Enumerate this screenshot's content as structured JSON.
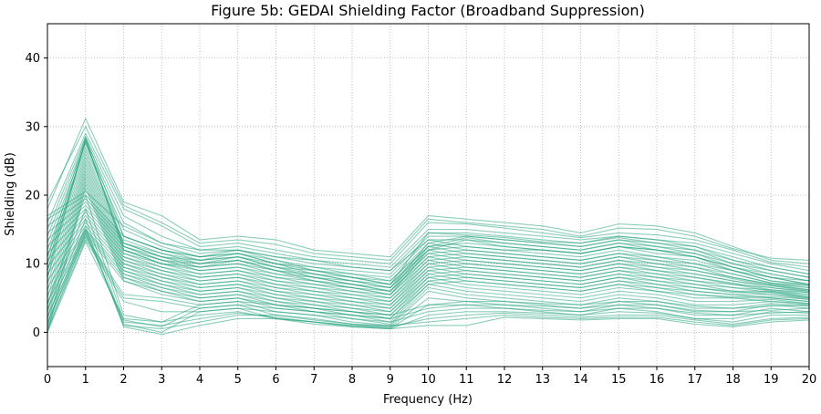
{
  "chart_data": {
    "type": "line",
    "title": "Figure 5b: GEDAI Shielding Factor (Broadband Suppression)",
    "xlabel": "Frequency (Hz)",
    "ylabel": "Shielding (dB)",
    "xlim": [
      0,
      20
    ],
    "ylim": [
      -5,
      45
    ],
    "xticks": [
      0,
      1,
      2,
      3,
      4,
      5,
      6,
      7,
      8,
      9,
      10,
      11,
      12,
      13,
      14,
      15,
      16,
      17,
      18,
      19,
      20
    ],
    "yticks": [
      0,
      10,
      20,
      30,
      40
    ],
    "x": [
      0,
      1,
      2,
      3,
      4,
      5,
      6,
      7,
      8,
      9,
      10,
      11,
      12,
      13,
      14,
      15,
      16,
      17,
      18,
      19,
      20
    ],
    "grid": true,
    "grid_style": "dotted",
    "line_color": "#1a9e77",
    "series": [
      {
        "values": [
          18.0,
          31.2,
          19.0,
          17.0,
          13.5,
          14.0,
          13.5,
          12.0,
          11.5,
          11.0,
          17.0,
          16.5,
          16.0,
          15.5,
          14.5,
          15.8,
          15.5,
          14.5,
          12.5,
          10.5,
          10.0
        ]
      },
      {
        "values": [
          16.0,
          29.0,
          18.0,
          15.5,
          12.5,
          13.0,
          12.0,
          11.0,
          10.5,
          10.0,
          16.0,
          15.8,
          15.2,
          14.5,
          13.8,
          14.5,
          14.2,
          13.5,
          12.0,
          10.2,
          9.5
        ]
      },
      {
        "values": [
          15.0,
          28.5,
          17.0,
          14.0,
          12.0,
          12.5,
          11.5,
          10.5,
          10.0,
          9.5,
          15.0,
          15.0,
          14.5,
          14.0,
          13.5,
          14.0,
          13.5,
          13.0,
          11.5,
          10.0,
          9.0
        ]
      },
      {
        "values": [
          14.0,
          28.0,
          16.0,
          13.0,
          11.5,
          12.0,
          11.0,
          10.0,
          9.5,
          9.0,
          14.5,
          14.5,
          14.0,
          13.5,
          13.0,
          13.8,
          13.0,
          12.5,
          11.0,
          9.5,
          8.5
        ]
      },
      {
        "values": [
          13.0,
          27.5,
          15.0,
          12.5,
          11.0,
          11.5,
          10.5,
          9.5,
          9.0,
          8.5,
          14.0,
          14.0,
          13.5,
          13.0,
          12.5,
          13.5,
          12.5,
          12.0,
          10.5,
          9.0,
          8.0
        ]
      },
      {
        "values": [
          12.0,
          27.0,
          14.0,
          12.0,
          10.5,
          11.0,
          10.0,
          9.0,
          8.5,
          8.0,
          13.5,
          13.5,
          13.0,
          12.5,
          12.0,
          13.0,
          12.0,
          11.5,
          10.0,
          8.5,
          7.5
        ]
      },
      {
        "values": [
          11.0,
          26.5,
          13.0,
          11.5,
          10.0,
          10.5,
          9.5,
          8.5,
          8.0,
          7.5,
          12.5,
          13.0,
          12.5,
          12.0,
          11.5,
          12.5,
          11.5,
          11.0,
          9.5,
          8.0,
          7.0
        ]
      },
      {
        "values": [
          10.0,
          26.0,
          12.5,
          11.0,
          9.5,
          10.0,
          9.0,
          8.0,
          7.5,
          7.0,
          12.0,
          12.5,
          12.0,
          11.5,
          11.0,
          12.0,
          11.0,
          10.5,
          9.0,
          7.5,
          6.8
        ]
      },
      {
        "values": [
          9.0,
          25.5,
          12.0,
          10.5,
          9.0,
          9.5,
          8.5,
          7.5,
          7.0,
          6.5,
          11.5,
          12.0,
          11.5,
          11.0,
          10.5,
          11.5,
          10.5,
          10.0,
          8.5,
          7.2,
          6.5
        ]
      },
      {
        "values": [
          8.0,
          25.0,
          11.5,
          10.0,
          8.5,
          9.0,
          8.0,
          7.0,
          6.5,
          6.0,
          11.0,
          11.5,
          11.0,
          10.5,
          10.0,
          11.0,
          10.0,
          9.5,
          8.0,
          7.0,
          6.2
        ]
      },
      {
        "values": [
          7.0,
          24.5,
          11.0,
          9.5,
          8.0,
          8.5,
          7.5,
          6.5,
          6.0,
          5.5,
          10.5,
          11.0,
          10.5,
          10.0,
          9.5,
          10.5,
          9.5,
          9.0,
          7.8,
          6.8,
          6.0
        ]
      },
      {
        "values": [
          6.0,
          24.0,
          10.5,
          9.0,
          7.5,
          8.0,
          7.0,
          6.0,
          5.5,
          5.0,
          10.0,
          10.5,
          10.0,
          9.5,
          9.0,
          10.0,
          9.0,
          8.5,
          7.5,
          6.5,
          5.8
        ]
      },
      {
        "values": [
          5.0,
          23.5,
          10.0,
          8.5,
          7.0,
          7.5,
          6.5,
          5.5,
          5.0,
          4.5,
          9.5,
          10.0,
          9.5,
          9.0,
          8.5,
          9.5,
          8.5,
          8.0,
          7.2,
          6.2,
          5.5
        ]
      },
      {
        "values": [
          4.0,
          23.0,
          9.5,
          8.0,
          6.5,
          7.0,
          6.0,
          5.0,
          4.5,
          4.0,
          9.0,
          9.5,
          9.0,
          8.5,
          8.0,
          9.0,
          8.0,
          7.5,
          7.0,
          6.0,
          5.2
        ]
      },
      {
        "values": [
          3.0,
          22.5,
          9.0,
          7.5,
          6.0,
          6.5,
          5.5,
          4.5,
          4.0,
          3.5,
          8.5,
          9.0,
          8.5,
          8.0,
          7.5,
          8.5,
          7.5,
          7.0,
          6.5,
          5.8,
          5.0
        ]
      },
      {
        "values": [
          2.0,
          22.0,
          8.5,
          7.0,
          5.5,
          6.0,
          5.0,
          4.0,
          3.5,
          3.0,
          8.0,
          8.5,
          8.0,
          7.5,
          7.0,
          8.0,
          7.0,
          6.5,
          6.0,
          5.5,
          4.8
        ]
      },
      {
        "values": [
          1.0,
          21.5,
          8.0,
          6.5,
          5.0,
          5.5,
          4.5,
          3.5,
          3.0,
          2.5,
          7.5,
          8.0,
          7.5,
          7.0,
          6.5,
          7.5,
          6.5,
          6.0,
          5.5,
          5.0,
          4.5
        ]
      },
      {
        "values": [
          0.0,
          21.0,
          7.5,
          6.0,
          4.5,
          5.0,
          4.0,
          3.0,
          2.5,
          2.0,
          7.0,
          7.5,
          7.0,
          6.5,
          6.0,
          7.0,
          6.0,
          5.5,
          5.0,
          4.5,
          4.2
        ]
      },
      {
        "values": [
          17.0,
          20.5,
          15.5,
          13.0,
          12.0,
          12.0,
          11.0,
          10.5,
          9.5,
          9.0,
          13.5,
          12.5,
          12.0,
          12.0,
          11.5,
          12.5,
          12.0,
          11.0,
          9.5,
          8.0,
          7.5
        ]
      },
      {
        "values": [
          16.5,
          20.0,
          14.0,
          12.0,
          11.0,
          11.5,
          10.0,
          9.5,
          8.5,
          7.5,
          13.0,
          12.0,
          11.5,
          11.0,
          10.5,
          11.5,
          11.0,
          10.0,
          9.0,
          7.5,
          7.0
        ]
      },
      {
        "values": [
          15.5,
          19.5,
          13.5,
          11.5,
          10.5,
          11.0,
          9.5,
          9.0,
          8.0,
          7.0,
          12.5,
          11.5,
          11.0,
          10.5,
          10.0,
          11.0,
          10.5,
          9.5,
          8.5,
          7.2,
          6.8
        ]
      },
      {
        "values": [
          14.5,
          19.0,
          13.0,
          11.0,
          10.0,
          10.5,
          9.0,
          8.5,
          7.5,
          6.5,
          12.0,
          11.0,
          10.5,
          10.0,
          9.5,
          10.5,
          10.0,
          9.0,
          8.0,
          7.0,
          6.5
        ]
      },
      {
        "values": [
          13.5,
          18.5,
          12.5,
          10.5,
          9.5,
          10.0,
          8.5,
          8.0,
          7.0,
          6.0,
          11.5,
          10.5,
          10.0,
          9.5,
          9.0,
          10.0,
          9.5,
          8.5,
          7.5,
          6.8,
          6.2
        ]
      },
      {
        "values": [
          12.5,
          18.0,
          12.0,
          10.0,
          9.0,
          9.5,
          8.0,
          7.5,
          6.5,
          5.5,
          11.0,
          10.0,
          9.5,
          9.0,
          8.5,
          9.5,
          9.0,
          8.0,
          7.0,
          6.5,
          6.0
        ]
      },
      {
        "values": [
          11.5,
          17.5,
          11.5,
          9.5,
          8.5,
          9.0,
          7.5,
          7.0,
          6.0,
          5.0,
          10.5,
          9.5,
          9.0,
          8.5,
          8.0,
          9.0,
          8.5,
          7.5,
          6.5,
          6.2,
          5.8
        ]
      },
      {
        "values": [
          10.5,
          17.0,
          11.0,
          9.0,
          8.0,
          8.5,
          7.0,
          6.5,
          5.5,
          4.5,
          10.0,
          9.0,
          8.5,
          8.0,
          7.5,
          8.5,
          8.0,
          7.0,
          6.0,
          6.0,
          5.5
        ]
      },
      {
        "values": [
          9.5,
          16.5,
          10.5,
          8.5,
          7.5,
          8.0,
          6.5,
          6.0,
          5.0,
          4.0,
          9.5,
          8.5,
          8.0,
          7.5,
          7.0,
          8.0,
          7.5,
          6.5,
          5.8,
          5.8,
          5.2
        ]
      },
      {
        "values": [
          8.5,
          16.0,
          10.0,
          8.0,
          7.0,
          7.5,
          6.0,
          5.5,
          4.5,
          3.5,
          9.0,
          8.0,
          7.5,
          7.0,
          6.5,
          7.5,
          7.0,
          6.0,
          5.5,
          5.5,
          5.0
        ]
      },
      {
        "values": [
          7.5,
          15.5,
          9.5,
          7.5,
          6.5,
          7.0,
          5.5,
          5.0,
          4.0,
          3.0,
          8.5,
          7.5,
          7.0,
          6.5,
          6.0,
          7.0,
          6.5,
          5.5,
          5.2,
          5.2,
          4.8
        ]
      },
      {
        "values": [
          6.5,
          15.0,
          9.0,
          7.0,
          6.0,
          6.5,
          5.0,
          4.5,
          3.5,
          2.5,
          8.0,
          7.0,
          6.5,
          6.0,
          5.5,
          6.5,
          6.0,
          5.0,
          5.0,
          5.0,
          4.5
        ]
      },
      {
        "values": [
          5.5,
          14.8,
          8.5,
          6.5,
          5.5,
          6.0,
          4.5,
          4.0,
          3.0,
          2.0,
          7.5,
          6.5,
          6.0,
          5.5,
          5.0,
          6.0,
          5.5,
          4.5,
          4.5,
          4.8,
          4.2
        ]
      },
      {
        "values": [
          4.5,
          14.5,
          8.0,
          6.0,
          5.0,
          5.5,
          4.0,
          3.5,
          2.5,
          1.5,
          7.0,
          6.0,
          5.5,
          5.0,
          4.5,
          5.5,
          5.0,
          4.0,
          4.0,
          4.5,
          4.0
        ]
      },
      {
        "values": [
          3.5,
          14.2,
          7.5,
          5.5,
          4.5,
          5.0,
          3.5,
          3.0,
          2.0,
          1.2,
          6.5,
          5.5,
          5.0,
          4.5,
          4.0,
          5.0,
          4.5,
          3.5,
          3.5,
          4.2,
          3.8
        ]
      },
      {
        "values": [
          2.5,
          14.0,
          5.5,
          5.0,
          4.0,
          4.5,
          3.0,
          2.5,
          1.5,
          1.0,
          6.0,
          5.0,
          4.5,
          4.0,
          3.5,
          4.5,
          4.0,
          3.0,
          3.0,
          4.0,
          3.5
        ]
      },
      {
        "values": [
          1.5,
          13.8,
          5.0,
          4.5,
          3.5,
          4.0,
          2.5,
          2.0,
          1.2,
          0.8,
          5.0,
          4.5,
          4.0,
          3.5,
          3.0,
          4.0,
          3.5,
          2.5,
          2.5,
          3.5,
          3.0
        ]
      },
      {
        "values": [
          0.5,
          13.5,
          4.5,
          3.0,
          3.0,
          3.5,
          2.0,
          1.5,
          1.0,
          0.6,
          4.0,
          4.0,
          3.5,
          3.0,
          2.5,
          3.5,
          3.0,
          2.0,
          2.0,
          3.0,
          2.8
        ]
      },
      {
        "values": [
          0.0,
          13.2,
          2.0,
          1.5,
          2.5,
          3.0,
          2.0,
          1.2,
          0.8,
          0.5,
          2.5,
          3.0,
          3.0,
          2.8,
          2.5,
          3.0,
          2.8,
          2.0,
          1.5,
          2.5,
          2.5
        ]
      },
      {
        "values": [
          0.2,
          14.5,
          1.5,
          1.0,
          2.0,
          2.8,
          2.2,
          1.5,
          1.0,
          0.8,
          2.0,
          2.5,
          2.8,
          2.5,
          2.2,
          2.5,
          2.5,
          1.8,
          1.2,
          2.0,
          2.2
        ]
      },
      {
        "values": [
          0.8,
          15.0,
          1.0,
          0.5,
          1.5,
          2.5,
          2.5,
          1.8,
          1.2,
          1.0,
          1.5,
          2.0,
          2.5,
          2.2,
          2.0,
          2.2,
          2.2,
          1.5,
          1.0,
          1.8,
          2.0
        ]
      },
      {
        "values": [
          1.2,
          15.5,
          0.8,
          -0.3,
          1.0,
          2.0,
          2.0,
          1.5,
          0.8,
          0.5,
          1.0,
          1.0,
          2.2,
          2.0,
          1.8,
          2.0,
          2.0,
          1.2,
          0.8,
          1.5,
          1.8
        ]
      },
      {
        "values": [
          2.0,
          16.5,
          1.2,
          0.0,
          3.0,
          3.5,
          3.0,
          2.5,
          2.0,
          1.5,
          3.0,
          3.5,
          3.5,
          3.2,
          3.0,
          3.5,
          3.5,
          2.8,
          2.5,
          2.8,
          3.0
        ]
      },
      {
        "values": [
          3.0,
          18.0,
          1.8,
          0.8,
          3.5,
          4.0,
          3.5,
          3.0,
          2.5,
          2.0,
          3.5,
          4.0,
          4.0,
          3.8,
          3.5,
          4.0,
          4.0,
          3.2,
          3.0,
          3.2,
          3.5
        ]
      },
      {
        "values": [
          4.0,
          20.0,
          2.5,
          1.5,
          4.0,
          4.5,
          4.0,
          3.5,
          3.0,
          2.5,
          4.0,
          4.5,
          4.5,
          4.2,
          4.0,
          4.5,
          4.5,
          3.8,
          3.5,
          3.8,
          4.0
        ]
      },
      {
        "values": [
          8.0,
          28.2,
          12.0,
          10.0,
          9.5,
          10.5,
          9.0,
          7.5,
          6.5,
          5.5,
          12.0,
          13.5,
          12.5,
          12.0,
          11.5,
          12.5,
          12.0,
          11.0,
          9.0,
          8.0,
          7.0
        ]
      },
      {
        "values": [
          9.0,
          28.0,
          12.5,
          10.5,
          10.0,
          11.0,
          9.5,
          8.0,
          7.0,
          6.0,
          12.5,
          13.8,
          13.0,
          12.5,
          12.0,
          13.0,
          12.5,
          11.5,
          9.5,
          8.5,
          7.5
        ]
      },
      {
        "values": [
          10.0,
          27.8,
          13.0,
          11.0,
          10.5,
          11.5,
          10.0,
          8.5,
          7.5,
          6.5,
          13.0,
          14.0,
          13.5,
          13.0,
          12.5,
          13.5,
          13.0,
          12.0,
          10.0,
          9.0,
          8.0
        ]
      },
      {
        "values": [
          11.0,
          28.5,
          14.0,
          12.0,
          11.0,
          12.0,
          10.5,
          9.0,
          8.0,
          7.0,
          14.5,
          14.2,
          13.8,
          13.2,
          13.0,
          14.0,
          13.5,
          12.5,
          10.5,
          9.5,
          8.5
        ]
      },
      {
        "values": [
          19.0,
          30.0,
          18.5,
          16.0,
          13.0,
          13.5,
          12.8,
          11.5,
          11.0,
          10.5,
          16.5,
          16.0,
          15.5,
          15.0,
          14.0,
          15.2,
          15.0,
          14.0,
          12.2,
          10.8,
          10.5
        ]
      }
    ]
  }
}
